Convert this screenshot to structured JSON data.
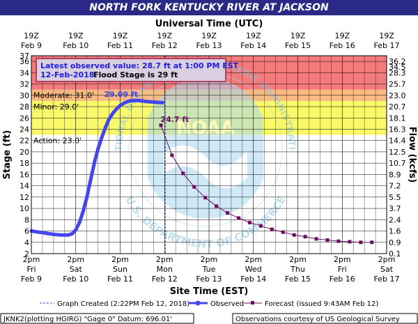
{
  "title": "NORTH FORK KENTUCKY RIVER AT JACKSON",
  "info_box": {
    "line1": "Latest observed value: 28.7 ft at 1:00 PM EST",
    "line2_date": "12-Feb-2018.",
    "line2_flood": "Flood Stage is 29 ft"
  },
  "watermark": {
    "logo_text": "NOAA",
    "ring_top": "NATIONAL OCEANIC AND ATMOSPHERIC ADMINISTRATION",
    "ring_bottom": "U.S. DEPARTMENT OF COMMERCE"
  },
  "legend": {
    "graph_created": "Graph Created (2:22PM Feb 12, 2018)",
    "observed": "Observed",
    "forecast": "Forecast (issued 9:43AM Feb 12)"
  },
  "footer": {
    "left": "JKNK2(plotting HGIRG) \"Gage 0\" Datum: 696.01'",
    "right": "Observations courtesy of US Geological Survey"
  },
  "colors": {
    "title_bg": "#2a2a86",
    "major": "#f47b7b",
    "moderate": "#f9ba82",
    "minor": "#f9f96a",
    "observed": "#4545f0",
    "forecast": "#6a1060",
    "watermark": "#a8d8f0"
  },
  "chart_data": {
    "type": "line",
    "title": "NORTH FORK KENTUCKY RIVER AT JACKSON",
    "xlabel": "Site Time (EST)",
    "x2label": "Universal Time (UTC)",
    "ylabel": "Stage (ft)",
    "y2label": "Flow (kcfs)",
    "ylim": [
      2,
      37
    ],
    "xlim": [
      "2018-02-09 14:00",
      "2018-02-17 14:00"
    ],
    "grid": true,
    "y_ticks": [
      2,
      4,
      6,
      8,
      10,
      12,
      14,
      16,
      18,
      20,
      22,
      24,
      26,
      28,
      30,
      32,
      34,
      36,
      37
    ],
    "y2_ticks": [
      {
        "stage": 2,
        "label": "0.1"
      },
      {
        "stage": 4,
        "label": "0.9"
      },
      {
        "stage": 6,
        "label": "1.6"
      },
      {
        "stage": 8,
        "label": "2.4"
      },
      {
        "stage": 10,
        "label": "3.7"
      },
      {
        "stage": 12,
        "label": "5.5"
      },
      {
        "stage": 14,
        "label": "7.2"
      },
      {
        "stage": 16,
        "label": "8.9"
      },
      {
        "stage": 18,
        "label": "10.7"
      },
      {
        "stage": 20,
        "label": "12.5"
      },
      {
        "stage": 22,
        "label": "14.4"
      },
      {
        "stage": 24,
        "label": "16.3"
      },
      {
        "stage": 26,
        "label": "18.1"
      },
      {
        "stage": 28,
        "label": "20.7"
      },
      {
        "stage": 30,
        "label": "23.0"
      },
      {
        "stage": 32,
        "label": "25.7"
      },
      {
        "stage": 34,
        "label": "28.3"
      },
      {
        "stage": 35,
        "label": "34.5"
      },
      {
        "stage": 36,
        "label": "36.2"
      }
    ],
    "x_ticks_bottom": [
      {
        "time": "2018-02-09 14:00",
        "l1": "2pm",
        "l2": "Fri",
        "l3": "Feb 9"
      },
      {
        "time": "2018-02-10 14:00",
        "l1": "2pm",
        "l2": "Sat",
        "l3": "Feb 10"
      },
      {
        "time": "2018-02-11 14:00",
        "l1": "2pm",
        "l2": "Sun",
        "l3": "Feb 11"
      },
      {
        "time": "2018-02-12 14:00",
        "l1": "2pm",
        "l2": "Mon",
        "l3": "Feb 12"
      },
      {
        "time": "2018-02-13 14:00",
        "l1": "2pm",
        "l2": "Tue",
        "l3": "Feb 13"
      },
      {
        "time": "2018-02-14 14:00",
        "l1": "2pm",
        "l2": "Wed",
        "l3": "Feb 14"
      },
      {
        "time": "2018-02-15 14:00",
        "l1": "2pm",
        "l2": "Thu",
        "l3": "Feb 15"
      },
      {
        "time": "2018-02-16 14:00",
        "l1": "2pm",
        "l2": "Fri",
        "l3": "Feb 16"
      },
      {
        "time": "2018-02-17 14:00",
        "l1": "2pm",
        "l2": "Sat",
        "l3": "Feb 17"
      }
    ],
    "x_ticks_top": [
      {
        "time": "2018-02-09 14:00",
        "l1": "19Z",
        "l2": "Feb 9"
      },
      {
        "time": "2018-02-10 14:00",
        "l1": "19Z",
        "l2": "Feb 10"
      },
      {
        "time": "2018-02-11 14:00",
        "l1": "19Z",
        "l2": "Feb 11"
      },
      {
        "time": "2018-02-12 14:00",
        "l1": "19Z",
        "l2": "Feb 12"
      },
      {
        "time": "2018-02-13 14:00",
        "l1": "19Z",
        "l2": "Feb 13"
      },
      {
        "time": "2018-02-14 14:00",
        "l1": "19Z",
        "l2": "Feb 14"
      },
      {
        "time": "2018-02-15 14:00",
        "l1": "19Z",
        "l2": "Feb 15"
      },
      {
        "time": "2018-02-16 14:00",
        "l1": "19Z",
        "l2": "Feb 16"
      },
      {
        "time": "2018-02-17 14:00",
        "l1": "19Z",
        "l2": "Feb 17"
      }
    ],
    "bands": [
      {
        "name": "major",
        "from": 31,
        "to": 37,
        "color": "#f47b7b"
      },
      {
        "name": "moderate",
        "from": 29,
        "to": 31,
        "color": "#f9ba82"
      },
      {
        "name": "minor",
        "from": 23,
        "to": 29,
        "color": "#f9f96a"
      }
    ],
    "stage_labels": [
      {
        "text": "Moderate: 31.0'",
        "y": 31
      },
      {
        "text": "Minor: 29.0'",
        "y": 29
      },
      {
        "text": "Action: 23.0'",
        "y": 23
      }
    ],
    "graph_created_time": "2018-02-12 14:22",
    "series": [
      {
        "name": "Observed",
        "color": "#4545f0",
        "points": [
          [
            "2018-02-09 14:00",
            6.0
          ],
          [
            "2018-02-09 18:00",
            5.8
          ],
          [
            "2018-02-09 22:00",
            5.6
          ],
          [
            "2018-02-10 02:00",
            5.4
          ],
          [
            "2018-02-10 06:00",
            5.3
          ],
          [
            "2018-02-10 10:00",
            5.3
          ],
          [
            "2018-02-10 12:00",
            5.5
          ],
          [
            "2018-02-10 14:00",
            6.2
          ],
          [
            "2018-02-10 16:00",
            7.5
          ],
          [
            "2018-02-10 18:00",
            9.5
          ],
          [
            "2018-02-10 20:00",
            12.0
          ],
          [
            "2018-02-10 22:00",
            15.0
          ],
          [
            "2018-02-11 00:00",
            18.0
          ],
          [
            "2018-02-11 02:00",
            20.5
          ],
          [
            "2018-02-11 04:00",
            22.5
          ],
          [
            "2018-02-11 06:00",
            24.3
          ],
          [
            "2018-02-11 08:00",
            25.8
          ],
          [
            "2018-02-11 10:00",
            26.8
          ],
          [
            "2018-02-11 12:00",
            27.6
          ],
          [
            "2018-02-11 14:00",
            28.2
          ],
          [
            "2018-02-11 16:00",
            28.6
          ],
          [
            "2018-02-11 18:00",
            28.9
          ],
          [
            "2018-02-11 20:00",
            29.05
          ],
          [
            "2018-02-11 22:00",
            29.09
          ],
          [
            "2018-02-12 00:00",
            29.08
          ],
          [
            "2018-02-12 02:00",
            29.0
          ],
          [
            "2018-02-12 04:00",
            28.9
          ],
          [
            "2018-02-12 06:00",
            28.85
          ],
          [
            "2018-02-12 08:00",
            28.8
          ],
          [
            "2018-02-12 10:00",
            28.75
          ],
          [
            "2018-02-12 13:00",
            28.7
          ]
        ]
      },
      {
        "name": "Forecast",
        "color": "#6a1060",
        "points": [
          [
            "2018-02-12 12:00",
            24.7
          ],
          [
            "2018-02-12 18:00",
            19.4
          ],
          [
            "2018-02-13 00:00",
            16.2
          ],
          [
            "2018-02-13 06:00",
            13.8
          ],
          [
            "2018-02-13 12:00",
            11.9
          ],
          [
            "2018-02-13 18:00",
            10.4
          ],
          [
            "2018-02-14 00:00",
            9.2
          ],
          [
            "2018-02-14 06:00",
            8.3
          ],
          [
            "2018-02-14 12:00",
            7.5
          ],
          [
            "2018-02-14 18:00",
            6.9
          ],
          [
            "2018-02-15 00:00",
            6.3
          ],
          [
            "2018-02-15 06:00",
            5.8
          ],
          [
            "2018-02-15 12:00",
            5.3
          ],
          [
            "2018-02-15 18:00",
            5.0
          ],
          [
            "2018-02-16 00:00",
            4.6
          ],
          [
            "2018-02-16 06:00",
            4.4
          ],
          [
            "2018-02-16 12:00",
            4.2
          ],
          [
            "2018-02-16 18:00",
            4.1
          ],
          [
            "2018-02-17 00:00",
            4.0
          ],
          [
            "2018-02-17 06:00",
            4.0
          ]
        ]
      }
    ],
    "annotations": [
      {
        "text": "29.09 ft",
        "x": "2018-02-11 22:00",
        "y": 29.09,
        "color": "#4545f0"
      },
      {
        "text": "24.7 ft",
        "x": "2018-02-12 12:00",
        "y": 24.7,
        "color": "#6a1060"
      }
    ]
  }
}
